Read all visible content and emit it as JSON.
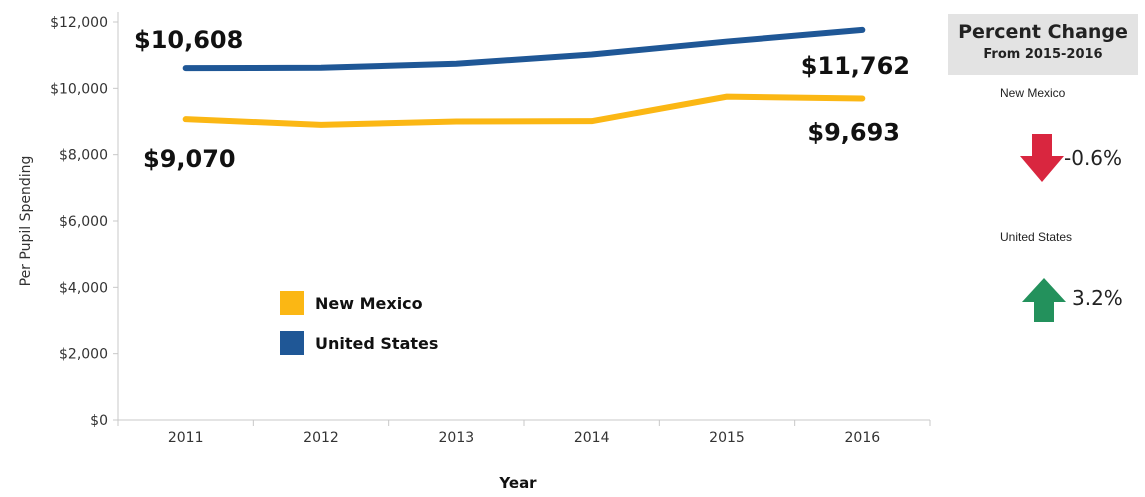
{
  "chart_data": {
    "type": "line",
    "title": "",
    "xlabel": "Year",
    "ylabel": "Per Pupil Spending",
    "categories": [
      "2011",
      "2012",
      "2013",
      "2014",
      "2015",
      "2016"
    ],
    "ylim": [
      0,
      12000
    ],
    "yticks": [
      0,
      2000,
      4000,
      6000,
      8000,
      10000,
      12000
    ],
    "ytick_labels": [
      "$0",
      "$2,000",
      "$4,000",
      "$6,000",
      "$8,000",
      "$10,000",
      "$12,000"
    ],
    "grid": false,
    "legend_position": "lower-left inside plot",
    "series": [
      {
        "name": "New Mexico",
        "color": "#fbb714",
        "values": [
          9070,
          8900,
          9000,
          9010,
          9750,
          9693
        ],
        "start_label": "$9,070",
        "end_label": "$9,693"
      },
      {
        "name": "United States",
        "color": "#1f5796",
        "values": [
          10608,
          10620,
          10740,
          11020,
          11410,
          11762
        ],
        "start_label": "$10,608",
        "end_label": "$11,762"
      }
    ]
  },
  "percent_change": {
    "title": "Percent Change",
    "subtitle": "From 2015-2016",
    "items": [
      {
        "region": "New Mexico",
        "direction": "down",
        "value": "-0.6%",
        "color": "#d9263f"
      },
      {
        "region": "United States",
        "direction": "up",
        "value": "3.2%",
        "color": "#23915c"
      }
    ]
  }
}
